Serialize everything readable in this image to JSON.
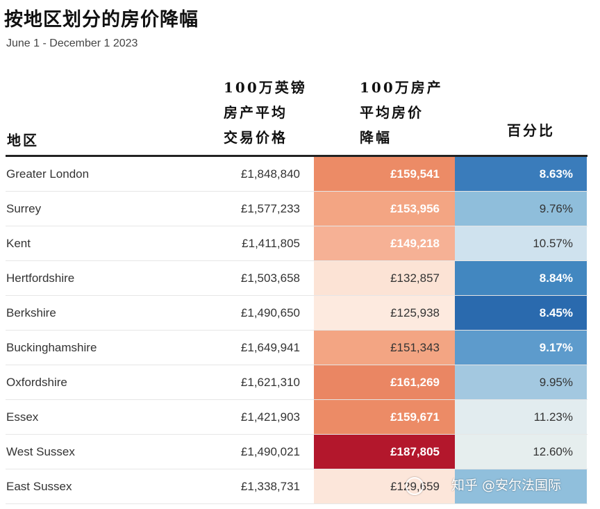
{
  "title": "按地区划分的房价降幅",
  "subtitle": "June 1 - December 1 2023",
  "watermark": "知乎 @安尔法国际",
  "chart_data": {
    "type": "table",
    "columns": [
      {
        "lines": [
          "地区"
        ]
      },
      {
        "lines": [
          "100万英镑",
          "房产平均",
          "交易价格"
        ]
      },
      {
        "lines": [
          "100万房产",
          "平均房价",
          "降幅"
        ]
      },
      {
        "lines": [
          "百分比"
        ]
      }
    ],
    "rows": [
      {
        "region": "Greater London",
        "avg": "£1,848,840",
        "drop": "£159,541",
        "pct": "8.63%",
        "drop_color": "#ec8b66",
        "pct_color": "#3a7cbb",
        "drop_text_white": true,
        "pct_text_white": true
      },
      {
        "region": "Surrey",
        "avg": "£1,577,233",
        "drop": "£153,956",
        "pct": "9.76%",
        "drop_color": "#f3a583",
        "pct_color": "#8fbedb",
        "drop_text_white": true,
        "pct_text_white": false
      },
      {
        "region": "Kent",
        "avg": "£1,411,805",
        "drop": "£149,218",
        "pct": "10.57%",
        "drop_color": "#f6b195",
        "pct_color": "#cfe2ee",
        "drop_text_white": true,
        "pct_text_white": false
      },
      {
        "region": "Hertfordshire",
        "avg": "£1,503,658",
        "drop": "£132,857",
        "pct": "8.84%",
        "drop_color": "#fce3d5",
        "pct_color": "#4287c0",
        "drop_text_white": false,
        "pct_text_white": true
      },
      {
        "region": "Berkshire",
        "avg": "£1,490,650",
        "drop": "£125,938",
        "pct": "8.45%",
        "drop_color": "#fdeadf",
        "pct_color": "#2a6aae",
        "drop_text_white": false,
        "pct_text_white": true
      },
      {
        "region": "Buckinghamshire",
        "avg": "£1,649,941",
        "drop": "£151,343",
        "pct": "9.17%",
        "drop_color": "#f3a583",
        "pct_color": "#5d9bcc",
        "drop_text_white": false,
        "pct_text_white": true
      },
      {
        "region": "Oxfordshire",
        "avg": "£1,621,310",
        "drop": "£161,269",
        "pct": "9.95%",
        "drop_color": "#ea8663",
        "pct_color": "#a3c8e0",
        "drop_text_white": true,
        "pct_text_white": false
      },
      {
        "region": "Essex",
        "avg": "£1,421,903",
        "drop": "£159,671",
        "pct": "11.23%",
        "drop_color": "#ec8b66",
        "pct_color": "#e2ecef",
        "drop_text_white": true,
        "pct_text_white": false
      },
      {
        "region": "West Sussex",
        "avg": "£1,490,021",
        "drop": "£187,805",
        "pct": "12.60%",
        "drop_color": "#b3172c",
        "pct_color": "#e6eeee",
        "drop_text_white": true,
        "pct_text_white": false
      },
      {
        "region": "East Sussex",
        "avg": "£1,338,731",
        "drop": "£129,659",
        "pct": "",
        "drop_color": "#fce6da",
        "pct_color": "#90bfdc",
        "drop_text_white": false,
        "pct_text_white": false
      }
    ]
  }
}
